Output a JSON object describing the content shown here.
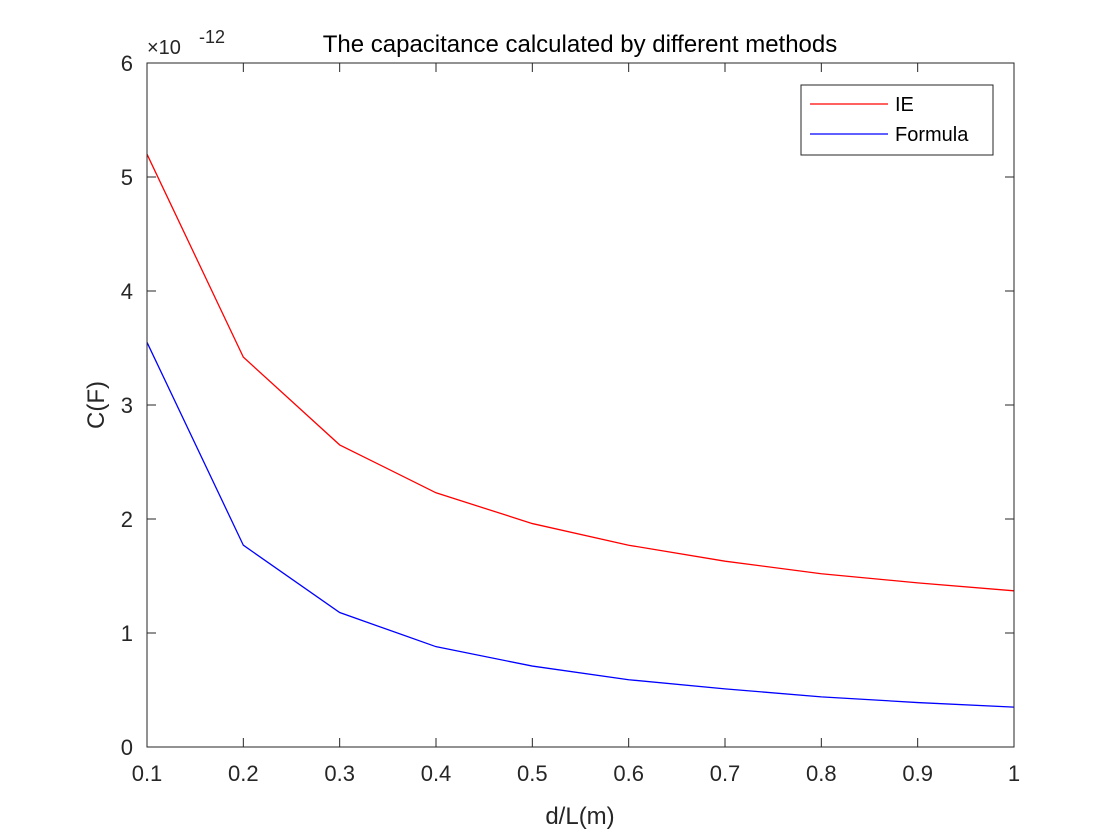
{
  "chart_data": {
    "type": "line",
    "title": "The capacitance calculated by different methods",
    "xlabel": "d/L(m)",
    "ylabel": "C(F)",
    "y_exponent_label": {
      "multiplier": "×10",
      "exponent": "-12"
    },
    "xlim": [
      0.1,
      1
    ],
    "ylim": [
      0,
      6
    ],
    "xticks": [
      "0.1",
      "0.2",
      "0.3",
      "0.4",
      "0.5",
      "0.6",
      "0.7",
      "0.8",
      "0.9",
      "1"
    ],
    "yticks": [
      "0",
      "1",
      "2",
      "3",
      "4",
      "5",
      "6"
    ],
    "x": [
      0.1,
      0.2,
      0.3,
      0.4,
      0.5,
      0.6,
      0.7,
      0.8,
      0.9,
      1.0
    ],
    "series": [
      {
        "name": "IE",
        "color": "#ff0000",
        "values": [
          5.2,
          3.42,
          2.65,
          2.23,
          1.96,
          1.77,
          1.63,
          1.52,
          1.44,
          1.37
        ]
      },
      {
        "name": "Formula",
        "color": "#0000ff",
        "values": [
          3.55,
          1.77,
          1.18,
          0.88,
          0.71,
          0.59,
          0.51,
          0.44,
          0.39,
          0.35
        ]
      }
    ],
    "grid": false,
    "legend_position": "top-right"
  }
}
